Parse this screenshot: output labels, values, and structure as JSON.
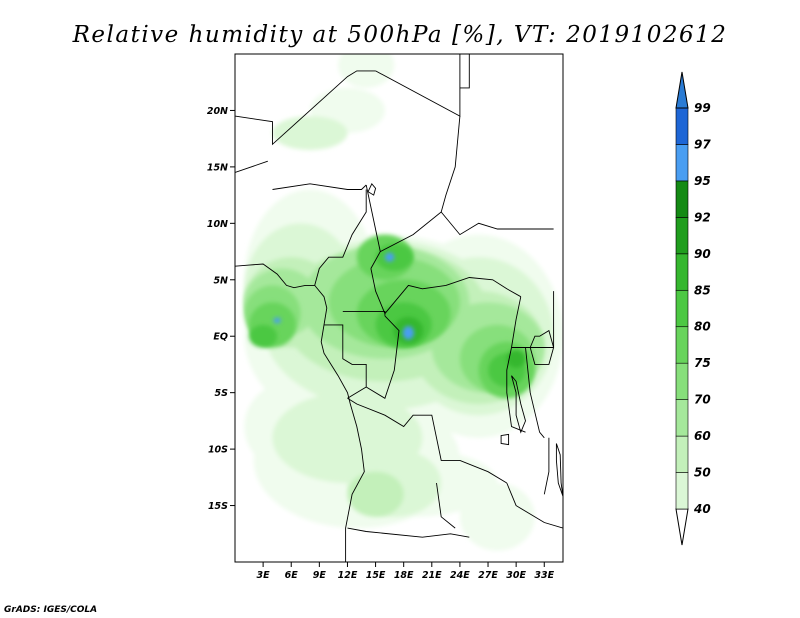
{
  "title": "Relative humidity at 500hPa [%], VT: 2019102612",
  "credit": "GrADS: IGES/COLA",
  "map": {
    "lon_range": [
      0,
      35
    ],
    "lat_range": [
      -20,
      25
    ],
    "lat_ticks": [
      {
        "label": "20N",
        "lat": 20
      },
      {
        "label": "15N",
        "lat": 15
      },
      {
        "label": "10N",
        "lat": 10
      },
      {
        "label": "5N",
        "lat": 5
      },
      {
        "label": "EQ",
        "lat": 0
      },
      {
        "label": "5S",
        "lat": -5
      },
      {
        "label": "10S",
        "lat": -10
      },
      {
        "label": "15S",
        "lat": -15
      }
    ],
    "lon_ticks": [
      {
        "label": "3E",
        "lon": 3
      },
      {
        "label": "6E",
        "lon": 6
      },
      {
        "label": "9E",
        "lon": 9
      },
      {
        "label": "12E",
        "lon": 12
      },
      {
        "label": "15E",
        "lon": 15
      },
      {
        "label": "18E",
        "lon": 18
      },
      {
        "label": "21E",
        "lon": 21
      },
      {
        "label": "24E",
        "lon": 24
      },
      {
        "label": "27E",
        "lon": 27
      },
      {
        "label": "30E",
        "lon": 30
      },
      {
        "label": "33E",
        "lon": 33
      }
    ]
  },
  "colorbar": {
    "levels": [
      "40",
      "50",
      "60",
      "70",
      "75",
      "80",
      "85",
      "90",
      "92",
      "95",
      "97",
      "99"
    ],
    "colors": [
      "#f0fcee",
      "#dbf7d6",
      "#c3f0ba",
      "#a5e89b",
      "#87df7b",
      "#68d45c",
      "#4cc843",
      "#35b72f",
      "#209e1e",
      "#148a14",
      "#4a9ef2",
      "#1e66d6",
      "#2a7bd4"
    ]
  },
  "fields": [
    {
      "name": "lvl40",
      "color": "#f0fcee",
      "blobs": [
        [
          16,
          0,
          15,
          9
        ],
        [
          8,
          5,
          7,
          8
        ],
        [
          26,
          0,
          9,
          9
        ],
        [
          13,
          -11,
          11,
          6
        ],
        [
          6,
          -8,
          5,
          4
        ],
        [
          19,
          -13,
          9,
          3
        ],
        [
          28,
          -16,
          4,
          3
        ],
        [
          12,
          20,
          4,
          2
        ],
        [
          14,
          24,
          3,
          2
        ]
      ]
    },
    {
      "name": "lvl50",
      "color": "#dbf7d6",
      "blobs": [
        [
          16,
          1,
          13,
          7.5
        ],
        [
          7,
          4,
          6,
          6
        ],
        [
          26,
          0,
          8,
          7
        ],
        [
          12,
          -9,
          8,
          4
        ],
        [
          17,
          -13,
          5,
          3
        ],
        [
          8,
          18,
          4,
          1.5
        ]
      ]
    },
    {
      "name": "lvl60",
      "color": "#c3f0ba",
      "blobs": [
        [
          16,
          2,
          11,
          6
        ],
        [
          6,
          3,
          5,
          4
        ],
        [
          26,
          -1,
          7,
          5
        ],
        [
          15,
          -14,
          3,
          2
        ]
      ]
    },
    {
      "name": "lvl70",
      "color": "#a5e89b",
      "blobs": [
        [
          16,
          3,
          9,
          5
        ],
        [
          5,
          3,
          4,
          3
        ],
        [
          27,
          -1,
          6,
          4
        ]
      ]
    },
    {
      "name": "lvl75",
      "color": "#87df7b",
      "blobs": [
        [
          17,
          3,
          7,
          4
        ],
        [
          4,
          2,
          3,
          2.5
        ],
        [
          28,
          -2,
          4,
          3
        ]
      ]
    },
    {
      "name": "lvl80",
      "color": "#68d45c",
      "blobs": [
        [
          18,
          2,
          5,
          3
        ],
        [
          16,
          7,
          3,
          2
        ],
        [
          4,
          1,
          2.5,
          2
        ],
        [
          29,
          -3,
          3,
          2.5
        ]
      ]
    },
    {
      "name": "lvl85",
      "color": "#4cc843",
      "blobs": [
        [
          18,
          1,
          3,
          2
        ],
        [
          17,
          7,
          2,
          1.2
        ],
        [
          29,
          -3,
          2,
          1.5
        ],
        [
          3,
          0,
          1.5,
          1
        ]
      ]
    },
    {
      "name": "lvl90",
      "color": "#35b72f",
      "blobs": [
        [
          18.5,
          0.5,
          1.6,
          1.2
        ],
        [
          30,
          -2,
          1,
          0.8
        ]
      ]
    },
    {
      "name": "lvl95",
      "color": "#4a9ef2",
      "blobs": [
        [
          18.5,
          0.3,
          0.6,
          0.6
        ],
        [
          16.5,
          7,
          0.5,
          0.4
        ],
        [
          4.5,
          1.4,
          0.4,
          0.25
        ]
      ]
    }
  ],
  "borders": [
    [
      [
        0,
        19.5
      ],
      [
        4,
        19
      ],
      [
        4,
        17
      ],
      [
        12,
        23
      ],
      [
        13,
        23.5
      ],
      [
        15,
        23.5
      ]
    ],
    [
      [
        15,
        23.5
      ],
      [
        24,
        19.5
      ],
      [
        24,
        25
      ]
    ],
    [
      [
        24,
        22
      ],
      [
        25,
        22
      ],
      [
        25,
        25
      ]
    ],
    [
      [
        3.5,
        15.5
      ],
      [
        0,
        14.5
      ]
    ],
    [
      [
        4,
        13
      ],
      [
        8,
        13.5
      ],
      [
        12,
        13
      ],
      [
        13.5,
        13
      ],
      [
        14,
        13.4
      ]
    ],
    [
      [
        14,
        13.4
      ],
      [
        15.5,
        7.5
      ],
      [
        14.5,
        6
      ]
    ],
    [
      [
        15.5,
        7.5
      ],
      [
        19,
        9
      ],
      [
        22,
        11
      ],
      [
        22.5,
        12.5
      ],
      [
        23.5,
        15
      ],
      [
        24,
        19.5
      ]
    ],
    [
      [
        22,
        11
      ],
      [
        24,
        9
      ],
      [
        26,
        10
      ],
      [
        28,
        9.5
      ],
      [
        34,
        9.5
      ]
    ],
    [
      [
        14.5,
        6
      ],
      [
        15,
        4
      ],
      [
        16,
        2
      ],
      [
        17.5,
        3.5
      ],
      [
        18.5,
        4.5
      ],
      [
        20,
        4.2
      ],
      [
        22.5,
        4.5
      ],
      [
        25,
        5.2
      ],
      [
        27.5,
        5
      ],
      [
        29,
        4.2
      ],
      [
        30.5,
        3.5
      ]
    ],
    [
      [
        8.5,
        4.5
      ],
      [
        9,
        6
      ],
      [
        10,
        7
      ],
      [
        11.5,
        7
      ],
      [
        12.5,
        9
      ],
      [
        14,
        11
      ],
      [
        14,
        13
      ]
    ],
    [
      [
        11.5,
        2.2
      ],
      [
        16,
        2.2
      ],
      [
        16,
        1.8
      ]
    ],
    [
      [
        9.5,
        1
      ],
      [
        11.5,
        1
      ],
      [
        11.5,
        -2
      ],
      [
        12.5,
        -2.5
      ],
      [
        14,
        -2.5
      ],
      [
        14,
        -4.5
      ],
      [
        12,
        -5.5
      ]
    ],
    [
      [
        16,
        1.8
      ],
      [
        17.5,
        0.5
      ],
      [
        17,
        -3
      ],
      [
        16,
        -5.5
      ],
      [
        14,
        -4.5
      ]
    ],
    [
      [
        30.5,
        3.5
      ],
      [
        30,
        1.5
      ],
      [
        29.5,
        -1
      ],
      [
        29,
        -3
      ],
      [
        29,
        -5
      ],
      [
        29.5,
        -8
      ],
      [
        31,
        -8.5
      ]
    ],
    [
      [
        12,
        -5.5
      ],
      [
        13,
        -6
      ],
      [
        16,
        -7
      ],
      [
        18,
        -8
      ],
      [
        19,
        -7
      ],
      [
        21,
        -7
      ],
      [
        22,
        -11
      ],
      [
        24,
        -11
      ],
      [
        27,
        -12
      ],
      [
        29,
        -13
      ]
    ],
    [
      [
        12,
        -17
      ],
      [
        14,
        -17.3
      ],
      [
        20,
        -17.8
      ],
      [
        23,
        -17.5
      ],
      [
        25,
        -17.8
      ]
    ],
    [
      [
        21.5,
        -13
      ],
      [
        22,
        -16
      ],
      [
        23.5,
        -17
      ]
    ],
    [
      [
        29,
        -13
      ],
      [
        30,
        -15
      ],
      [
        33,
        -16.5
      ],
      [
        35,
        -17
      ]
    ],
    [
      [
        33.5,
        -9
      ],
      [
        33.5,
        -12
      ],
      [
        33,
        -14
      ]
    ],
    [
      [
        29.5,
        -1
      ],
      [
        31,
        -1
      ],
      [
        34,
        -1
      ],
      [
        34,
        4
      ]
    ],
    [
      [
        31,
        -1
      ],
      [
        31.5,
        -5
      ],
      [
        32.5,
        -8.5
      ],
      [
        33,
        -9
      ]
    ]
  ],
  "lakes": [
    [
      [
        29.5,
        -3.5
      ],
      [
        30,
        -5
      ],
      [
        30,
        -7
      ],
      [
        30.5,
        -8.5
      ],
      [
        31,
        -7.5
      ],
      [
        30.5,
        -6
      ],
      [
        30,
        -4
      ]
    ],
    [
      [
        32.5,
        0
      ],
      [
        33.5,
        0.5
      ],
      [
        34,
        -1
      ],
      [
        33.5,
        -2.5
      ],
      [
        32,
        -2.5
      ],
      [
        31.5,
        -1
      ],
      [
        32,
        0
      ]
    ],
    [
      [
        34.3,
        -9.5
      ],
      [
        34.7,
        -10.5
      ],
      [
        34.8,
        -13
      ],
      [
        35,
        -14.2
      ],
      [
        34.5,
        -13
      ],
      [
        34.3,
        -11
      ]
    ],
    [
      [
        28.4,
        -8.8
      ],
      [
        29.2,
        -8.7
      ],
      [
        29.2,
        -9.6
      ],
      [
        28.4,
        -9.5
      ]
    ],
    [
      [
        14.6,
        13.5
      ],
      [
        14.2,
        12.8
      ],
      [
        14.8,
        12.5
      ],
      [
        15,
        13.1
      ]
    ]
  ],
  "coast": [
    [
      [
        0,
        6.2
      ],
      [
        1.5,
        6.3
      ],
      [
        3,
        6.4
      ],
      [
        4.5,
        5.5
      ],
      [
        5.5,
        4.5
      ],
      [
        6.3,
        4.3
      ],
      [
        7.5,
        4.5
      ],
      [
        8.5,
        4.5
      ],
      [
        9.5,
        3.5
      ],
      [
        9.8,
        2.5
      ],
      [
        9.5,
        1
      ],
      [
        9.2,
        -0.5
      ],
      [
        9.5,
        -1.5
      ],
      [
        11,
        -3.5
      ],
      [
        12,
        -5
      ],
      [
        12.3,
        -6
      ],
      [
        13,
        -8
      ],
      [
        13.5,
        -10
      ],
      [
        13.8,
        -12
      ],
      [
        12.5,
        -14
      ],
      [
        11.8,
        -17
      ],
      [
        11.8,
        -20
      ]
    ]
  ]
}
